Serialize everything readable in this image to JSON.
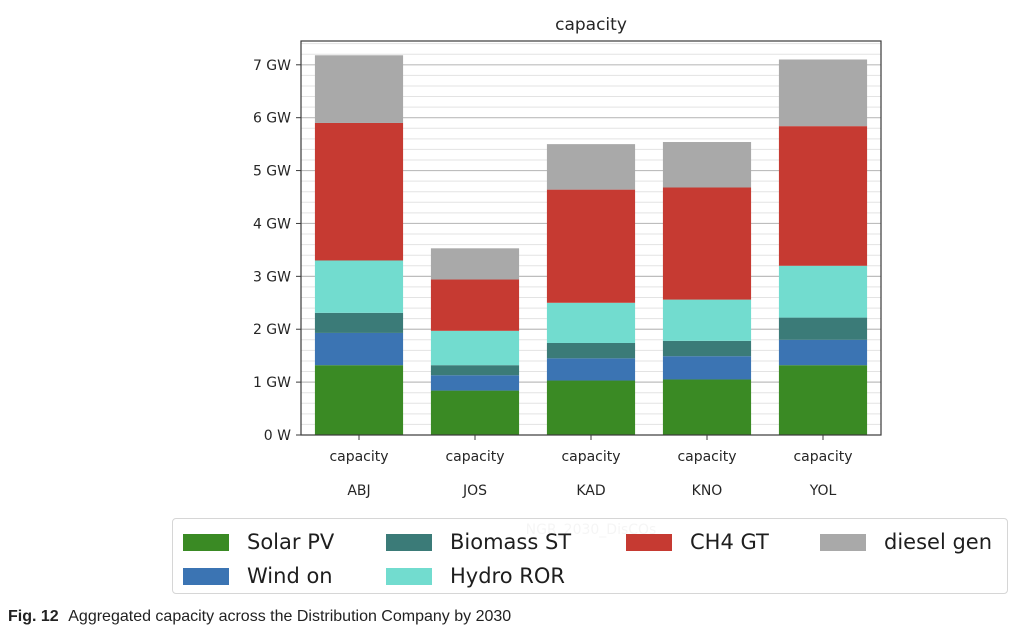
{
  "chart_data": {
    "type": "bar",
    "stacked": true,
    "title": "capacity",
    "xlabel": "NGR_2030_DisCOs",
    "ylabel": "",
    "ylim": [
      0,
      7.45
    ],
    "yunit": "GW",
    "yticks": [
      {
        "value": 0,
        "label": "0 W"
      },
      {
        "value": 1,
        "label": "1 GW"
      },
      {
        "value": 2,
        "label": "2 GW"
      },
      {
        "value": 3,
        "label": "3 GW"
      },
      {
        "value": 4,
        "label": "4 GW"
      },
      {
        "value": 5,
        "label": "5 GW"
      },
      {
        "value": 6,
        "label": "6 GW"
      },
      {
        "value": 7,
        "label": "7 GW"
      }
    ],
    "minor_grid_step": 0.2,
    "grid": true,
    "legend_position": "bottom",
    "categories": [
      {
        "top": "capacity",
        "bottom": "ABJ"
      },
      {
        "top": "capacity",
        "bottom": "JOS"
      },
      {
        "top": "capacity",
        "bottom": "KAD"
      },
      {
        "top": "capacity",
        "bottom": "KNO"
      },
      {
        "top": "capacity",
        "bottom": "YOL"
      }
    ],
    "series": [
      {
        "name": "Solar PV",
        "color": "#3a8a24",
        "values": [
          1.32,
          0.84,
          1.03,
          1.05,
          1.32
        ]
      },
      {
        "name": "Wind on",
        "color": "#3b74b3",
        "values": [
          0.61,
          0.29,
          0.42,
          0.44,
          0.48
        ]
      },
      {
        "name": "Biomass ST",
        "color": "#3b7b78",
        "values": [
          0.38,
          0.19,
          0.29,
          0.29,
          0.42
        ]
      },
      {
        "name": "Hydro ROR",
        "color": "#72dccf",
        "values": [
          0.99,
          0.65,
          0.76,
          0.78,
          0.98
        ]
      },
      {
        "name": "CH4 GT",
        "color": "#c63a32",
        "values": [
          2.6,
          0.97,
          2.14,
          2.12,
          2.64
        ]
      },
      {
        "name": "diesel gen",
        "color": "#a9a9a9",
        "values": [
          1.28,
          0.59,
          0.86,
          0.86,
          1.26
        ]
      }
    ]
  },
  "legend": {
    "items": [
      {
        "label": "Solar PV",
        "color": "#3a8a24"
      },
      {
        "label": "Wind on",
        "color": "#3b74b3"
      },
      {
        "label": "Biomass ST",
        "color": "#3b7b78"
      },
      {
        "label": "Hydro ROR",
        "color": "#72dccf"
      },
      {
        "label": "CH4 GT",
        "color": "#c63a32"
      },
      {
        "label": "diesel gen",
        "color": "#a9a9a9"
      }
    ]
  },
  "caption": {
    "figure_label": "Fig. 12",
    "text": "Aggregated capacity across the Distribution Company by 2030"
  }
}
